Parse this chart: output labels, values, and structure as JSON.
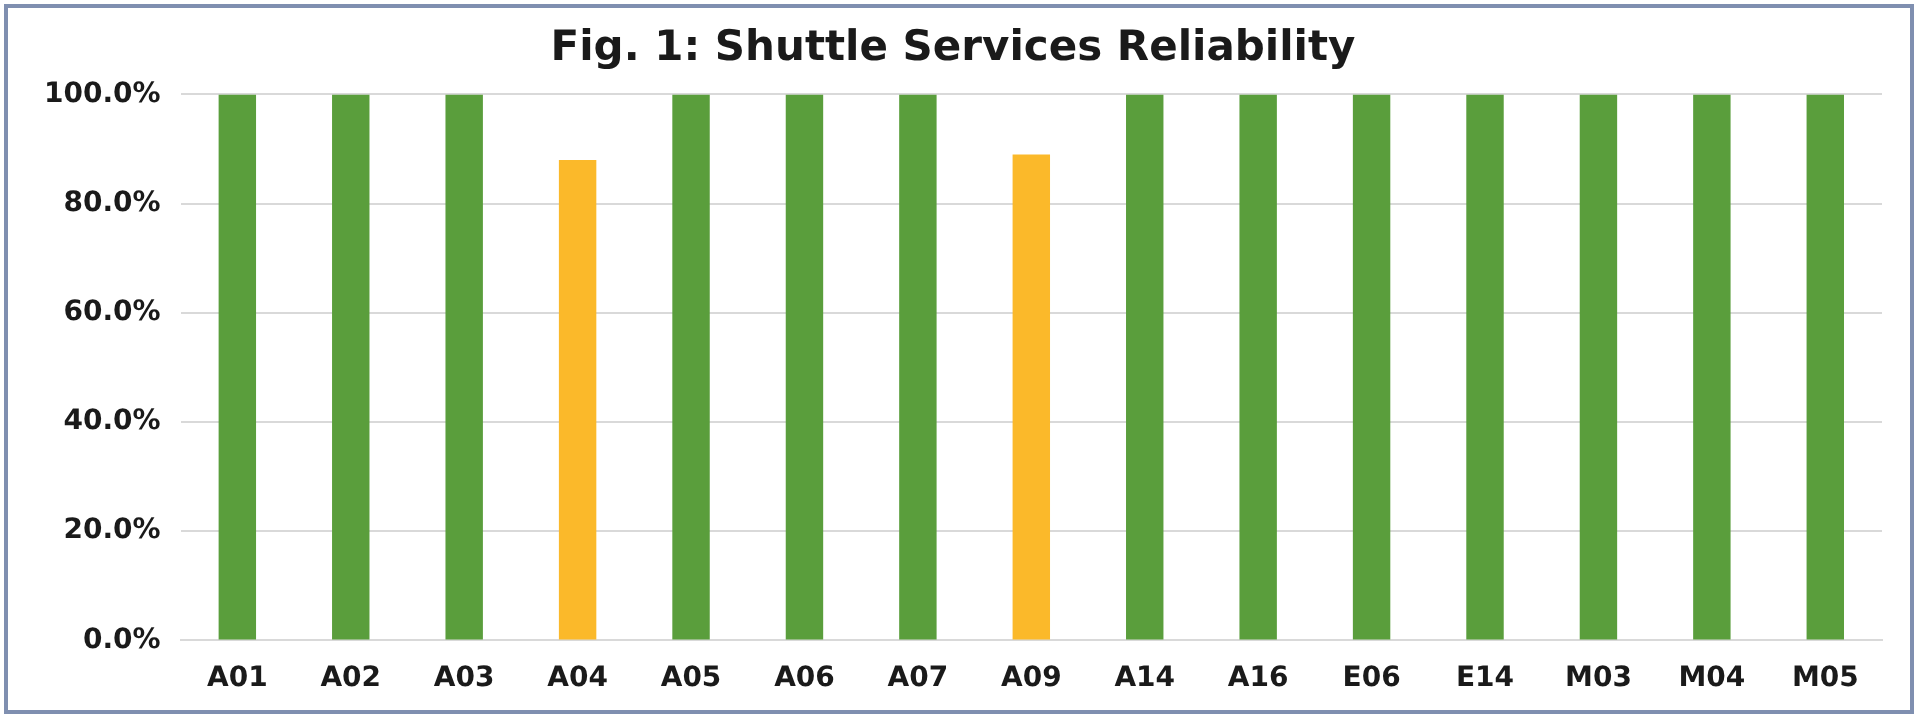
{
  "chart_data": {
    "type": "bar",
    "title": "Fig. 1: Shuttle Services Reliability",
    "categories": [
      "A01",
      "A02",
      "A03",
      "A04",
      "A05",
      "A06",
      "A07",
      "A09",
      "A14",
      "A16",
      "E06",
      "E14",
      "M03",
      "M04",
      "M05"
    ],
    "values": [
      100,
      100,
      100,
      88,
      100,
      100,
      100,
      89,
      100,
      100,
      100,
      100,
      100,
      100,
      100
    ],
    "colors": [
      "#5a9e3c",
      "#5a9e3c",
      "#5a9e3c",
      "#fbb92a",
      "#5a9e3c",
      "#5a9e3c",
      "#5a9e3c",
      "#fbb92a",
      "#5a9e3c",
      "#5a9e3c",
      "#5a9e3c",
      "#5a9e3c",
      "#5a9e3c",
      "#5a9e3c",
      "#5a9e3c"
    ],
    "ylim": [
      0,
      100
    ],
    "yticks": [
      {
        "value": 0,
        "label": "0.0%"
      },
      {
        "value": 20,
        "label": "20.0%"
      },
      {
        "value": 40,
        "label": "40.0%"
      },
      {
        "value": 60,
        "label": "60.0%"
      },
      {
        "value": 80,
        "label": "80.0%"
      },
      {
        "value": 100,
        "label": "100.0%"
      }
    ],
    "grid": "y",
    "legend": false
  }
}
